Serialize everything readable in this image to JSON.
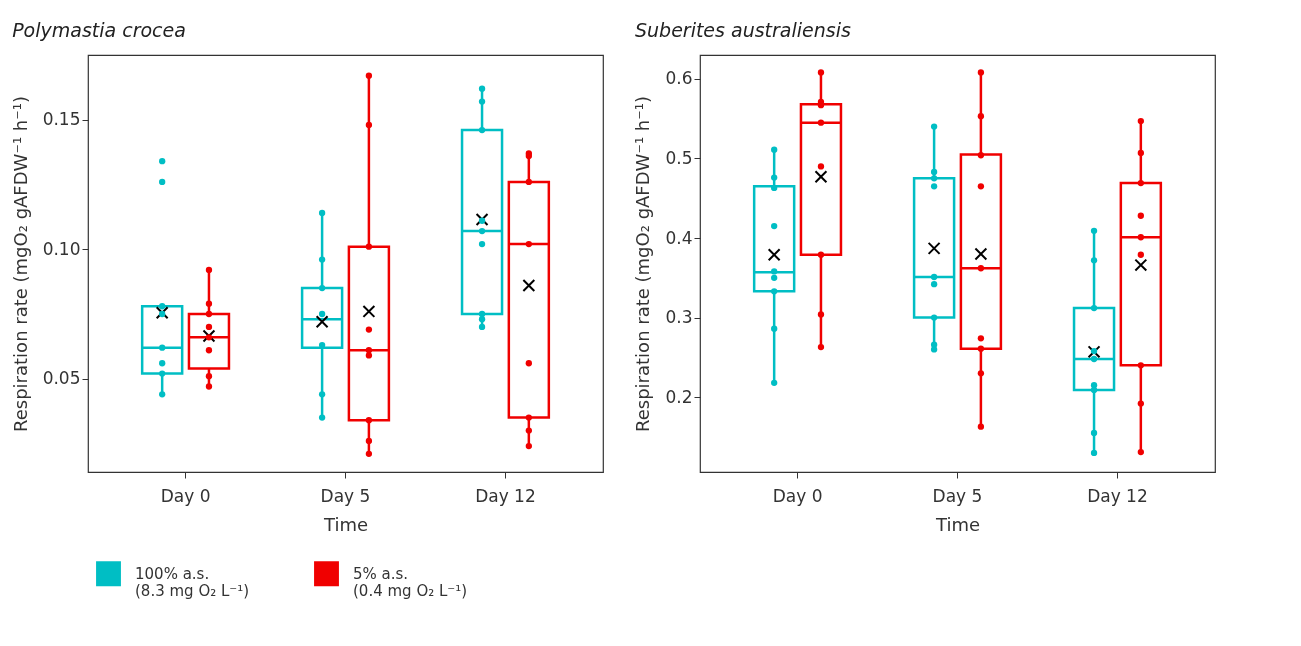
{
  "chart_data": [
    {
      "type": "box",
      "title": "Polymastia crocea",
      "xlabel": "Time",
      "ylabel": "Respiration rate (mgO₂ gAFDW⁻¹ h⁻¹)",
      "categories": [
        "Day 0",
        "Day 5",
        "Day 12"
      ],
      "ylim": [
        0.014,
        0.175
      ],
      "yticks": [
        {
          "value": 0.05,
          "label": "0.05"
        },
        {
          "value": 0.1,
          "label": "0.10"
        },
        {
          "value": 0.15,
          "label": "0.15"
        }
      ],
      "legend": "bottom",
      "marker": "circle",
      "series": [
        {
          "name": "100% a.s.\n(8.3 mg O₂ L⁻¹)",
          "color": "#00bec4",
          "boxes": [
            {
              "low": 0.044,
              "q1": 0.052,
              "median": 0.062,
              "q3": 0.078,
              "high": 0.078,
              "mean": 0.0755,
              "outliers": [
                0.134,
                0.126
              ]
            },
            {
              "low": 0.035,
              "q1": 0.062,
              "median": 0.073,
              "q3": 0.085,
              "high": 0.114,
              "mean": 0.072
            },
            {
              "low": 0.07,
              "q1": 0.075,
              "median": 0.107,
              "q3": 0.146,
              "high": 0.162,
              "mean": 0.1115
            }
          ]
        },
        {
          "name": "5% a.s.\n(0.4 mg O₂ L⁻¹)",
          "color": "#f00000",
          "boxes": [
            {
              "low": 0.047,
              "q1": 0.054,
              "median": 0.066,
              "q3": 0.075,
              "high": 0.092,
              "mean": 0.0665
            },
            {
              "low": 0.021,
              "q1": 0.034,
              "median": 0.061,
              "q3": 0.101,
              "high": 0.167,
              "mean": 0.076
            },
            {
              "low": 0.024,
              "q1": 0.035,
              "median": 0.102,
              "q3": 0.126,
              "high": 0.137,
              "mean": 0.086
            }
          ]
        },
        {
          "type": "scatter",
          "color": "#00bec4",
          "x": [
            "Day 0",
            "Day 0",
            "Day 0",
            "Day 0",
            "Day 0",
            "Day 0",
            "Day 5",
            "Day 5",
            "Day 5",
            "Day 5",
            "Day 5",
            "Day 5",
            "Day 5",
            "Day 12",
            "Day 12",
            "Day 12",
            "Day 12",
            "Day 12",
            "Day 12",
            "Day 12",
            "Day 12",
            "Day 12"
          ],
          "values": [
            0.078,
            0.075,
            0.062,
            0.056,
            0.052,
            0.044,
            0.114,
            0.096,
            0.085,
            0.075,
            0.063,
            0.044,
            0.035,
            0.162,
            0.157,
            0.146,
            0.111,
            0.107,
            0.102,
            0.075,
            0.073,
            0.07
          ]
        },
        {
          "type": "scatter",
          "color": "#f00000",
          "x": [
            "Day 0",
            "Day 0",
            "Day 0",
            "Day 0",
            "Day 0",
            "Day 0",
            "Day 0",
            "Day 0",
            "Day 5",
            "Day 5",
            "Day 5",
            "Day 5",
            "Day 5",
            "Day 5",
            "Day 5",
            "Day 5",
            "Day 5",
            "Day 12",
            "Day 12",
            "Day 12",
            "Day 12",
            "Day 12",
            "Day 12",
            "Day 12",
            "Day 12"
          ],
          "values": [
            0.092,
            0.079,
            0.075,
            0.07,
            0.066,
            0.061,
            0.051,
            0.047,
            0.167,
            0.148,
            0.101,
            0.069,
            0.061,
            0.059,
            0.034,
            0.026,
            0.021,
            0.137,
            0.136,
            0.126,
            0.102,
            0.056,
            0.035,
            0.03,
            0.024
          ]
        }
      ]
    },
    {
      "type": "box",
      "title": "Suberites australiensis",
      "xlabel": "Time",
      "ylabel": "Respiration rate (mgO₂ gAFDW⁻¹ h⁻¹)",
      "categories": [
        "Day 0",
        "Day 5",
        "Day 12"
      ],
      "ylim": [
        0.106,
        0.63
      ],
      "yticks": [
        0.2,
        0.3,
        0.4,
        0.5,
        0.6
      ],
      "legend": "bottom",
      "marker": "circle",
      "series": [
        {
          "name": "100% a.s.\n(8.3 mg O₂ L⁻¹)",
          "color": "#00bec4",
          "boxes": [
            {
              "low": 0.218,
              "q1": 0.333,
              "median": 0.357,
              "q3": 0.465,
              "high": 0.511,
              "mean": 0.379
            },
            {
              "low": 0.26,
              "q1": 0.3,
              "median": 0.351,
              "q3": 0.475,
              "high": 0.54,
              "mean": 0.387
            },
            {
              "low": 0.13,
              "q1": 0.209,
              "median": 0.248,
              "q3": 0.312,
              "high": 0.409,
              "mean": 0.257
            }
          ]
        },
        {
          "name": "5% a.s.\n(0.4 mg O₂ L⁻¹)",
          "color": "#f00000",
          "boxes": [
            {
              "low": 0.263,
              "q1": 0.379,
              "median": 0.545,
              "q3": 0.568,
              "high": 0.608,
              "mean": 0.477
            },
            {
              "low": 0.163,
              "q1": 0.261,
              "median": 0.362,
              "q3": 0.505,
              "high": 0.608,
              "mean": 0.38
            },
            {
              "low": 0.131,
              "q1": 0.24,
              "median": 0.401,
              "q3": 0.469,
              "high": 0.547,
              "mean": 0.366
            }
          ]
        },
        {
          "type": "scatter",
          "color": "#00bec4",
          "x": [
            "Day 0",
            "Day 0",
            "Day 0",
            "Day 0",
            "Day 0",
            "Day 0",
            "Day 0",
            "Day 0",
            "Day 0",
            "Day 5",
            "Day 5",
            "Day 5",
            "Day 5",
            "Day 5",
            "Day 5",
            "Day 5",
            "Day 5",
            "Day 5",
            "Day 12",
            "Day 12",
            "Day 12",
            "Day 12",
            "Day 12",
            "Day 12",
            "Day 12",
            "Day 12",
            "Day 12"
          ],
          "values": [
            0.511,
            0.476,
            0.463,
            0.415,
            0.358,
            0.35,
            0.333,
            0.286,
            0.218,
            0.54,
            0.483,
            0.475,
            0.465,
            0.351,
            0.342,
            0.3,
            0.266,
            0.26,
            0.409,
            0.372,
            0.312,
            0.258,
            0.248,
            0.215,
            0.209,
            0.155,
            0.13
          ]
        },
        {
          "type": "scatter",
          "color": "#f00000",
          "x": [
            "Day 0",
            "Day 0",
            "Day 0",
            "Day 0",
            "Day 0",
            "Day 0",
            "Day 0",
            "Day 0",
            "Day 5",
            "Day 5",
            "Day 5",
            "Day 5",
            "Day 5",
            "Day 5",
            "Day 5",
            "Day 5",
            "Day 5",
            "Day 12",
            "Day 12",
            "Day 12",
            "Day 12",
            "Day 12",
            "Day 12",
            "Day 12",
            "Day 12",
            "Day 12"
          ],
          "values": [
            0.608,
            0.571,
            0.567,
            0.545,
            0.49,
            0.379,
            0.304,
            0.263,
            0.608,
            0.553,
            0.504,
            0.465,
            0.362,
            0.274,
            0.261,
            0.23,
            0.163,
            0.547,
            0.507,
            0.469,
            0.428,
            0.401,
            0.379,
            0.24,
            0.192,
            0.131
          ]
        }
      ]
    }
  ]
}
